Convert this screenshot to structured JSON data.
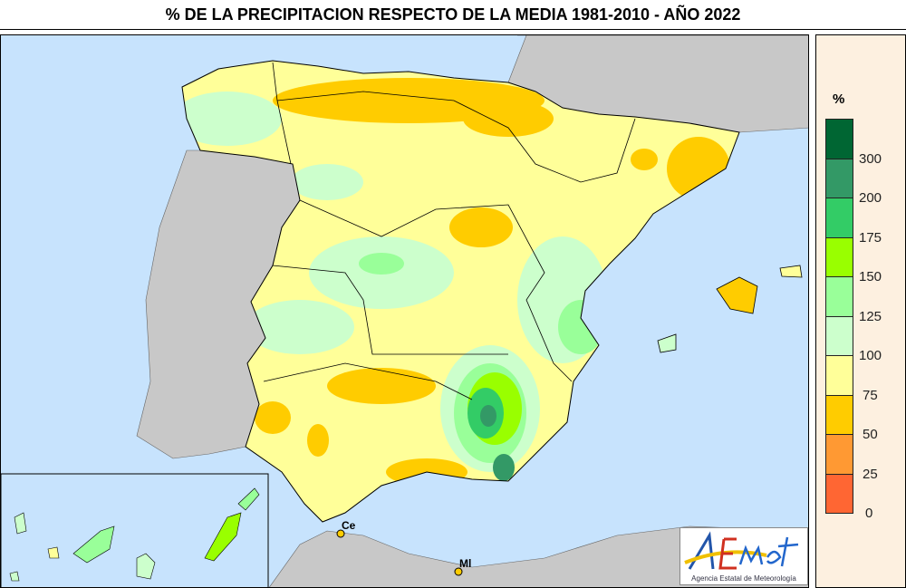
{
  "title": "% DE LA PRECIPITACION RESPECTO DE LA MEDIA 1981-2010 - AÑO 2022",
  "legend": {
    "unit": "%",
    "bins": [
      {
        "range": ">300",
        "color": "#006633"
      },
      {
        "range": "200-300",
        "color": "#339966"
      },
      {
        "range": "175-200",
        "color": "#33cc66"
      },
      {
        "range": "150-175",
        "color": "#99ff00"
      },
      {
        "range": "125-150",
        "color": "#99ff99"
      },
      {
        "range": "100-125",
        "color": "#ccffcc"
      },
      {
        "range": "75-100",
        "color": "#ffff99"
      },
      {
        "range": "50-75",
        "color": "#ffcc00"
      },
      {
        "range": "25-50",
        "color": "#ff9933"
      },
      {
        "range": "0-25",
        "color": "#ff6633"
      }
    ],
    "ticks": [
      "300",
      "200",
      "175",
      "150",
      "125",
      "100",
      "75",
      "50",
      "25",
      "0"
    ]
  },
  "map": {
    "sea_color": "#c7e3fd",
    "land_other_color": "#c8c8c8",
    "labels": {
      "ceuta": "Ce",
      "melilla": "Ml"
    }
  },
  "logo": {
    "mark": "AEMet",
    "name": "Agencia Estatal de Meteorología"
  }
}
